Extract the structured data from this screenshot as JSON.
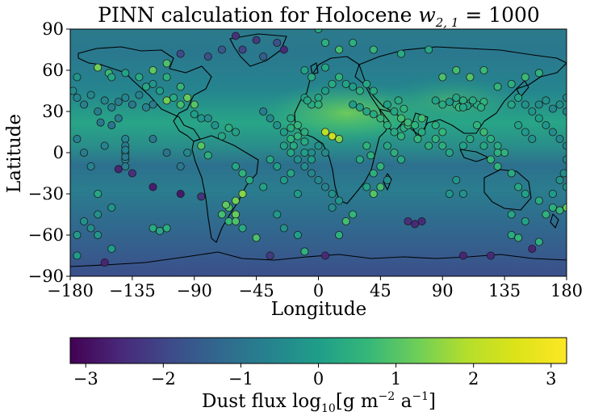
{
  "chart_data": {
    "type": "scatter",
    "title": "PINN calculation for Holocene",
    "title_math": "w",
    "title_math_sub": "2, 1",
    "title_math_rhs": " = 1000",
    "xlabel": "Longitude",
    "ylabel": "Latitude",
    "xlim": [
      -180,
      180
    ],
    "ylim": [
      -90,
      90
    ],
    "xticks": [
      -180,
      -135,
      -90,
      -45,
      0,
      45,
      90,
      135,
      180
    ],
    "yticks": [
      -90,
      -60,
      -30,
      0,
      30,
      60,
      90
    ],
    "xtick_labels": [
      "−180",
      "−135",
      "−90",
      "−45",
      "0",
      "45",
      "90",
      "135",
      "180"
    ],
    "ytick_labels": [
      "−90",
      "−60",
      "−30",
      "0",
      "30",
      "60",
      "90"
    ],
    "colormap": "viridis",
    "colorbar": {
      "label_main": "Dust flux log",
      "label_sub": "10",
      "label_unit_open": "[g m",
      "label_sup1": "−2",
      "label_unit_mid": " a",
      "label_sup2": "−1",
      "label_unit_close": "]",
      "range": [
        -3.2,
        3.2
      ],
      "ticks": [
        -3,
        -2,
        -1,
        0,
        1,
        2,
        3
      ],
      "tick_labels": [
        "−3",
        "−2",
        "−1",
        "0",
        "1",
        "2",
        "3"
      ]
    },
    "points": [
      [
        -150,
        33,
        -0.7
      ],
      [
        -160,
        30,
        -0.8
      ],
      [
        -175,
        40,
        -0.6
      ],
      [
        -170,
        35,
        -0.7
      ],
      [
        -165,
        42,
        -0.5
      ],
      [
        -155,
        38,
        -0.6
      ],
      [
        -145,
        37,
        -0.8
      ],
      [
        -140,
        40,
        -0.6
      ],
      [
        -135,
        35,
        -0.9
      ],
      [
        -130,
        42,
        -0.7
      ],
      [
        -125,
        33,
        -0.6
      ],
      [
        -120,
        35,
        -0.8
      ],
      [
        -158,
        22,
        -0.9
      ],
      [
        -150,
        20,
        -1.0
      ],
      [
        -145,
        25,
        -0.8
      ],
      [
        -125,
        48,
        0.2
      ],
      [
        -120,
        50,
        -0.2
      ],
      [
        -115,
        45,
        0.0
      ],
      [
        -110,
        55,
        0.4
      ],
      [
        -100,
        48,
        0.6
      ],
      [
        -105,
        40,
        0.3
      ],
      [
        -152,
        58,
        0.7
      ],
      [
        -160,
        62,
        1.3
      ],
      [
        -140,
        10,
        -0.6
      ],
      [
        -140,
        5,
        -0.8
      ],
      [
        -140,
        0,
        -0.9
      ],
      [
        -140,
        -5,
        -0.7
      ],
      [
        -140,
        -10,
        -0.8
      ],
      [
        -140,
        -3,
        -0.9
      ],
      [
        -140,
        2,
        -0.7
      ],
      [
        -155,
        5,
        -0.6
      ],
      [
        -110,
        38,
        1.3
      ],
      [
        -90,
        28,
        0.0
      ],
      [
        -85,
        25,
        -0.2
      ],
      [
        -80,
        25,
        -0.4
      ],
      [
        -75,
        20,
        -0.3
      ],
      [
        -85,
        5,
        1.0
      ],
      [
        -80,
        -2,
        0.4
      ],
      [
        -95,
        0,
        -0.5
      ],
      [
        -145,
        -12,
        -2.6
      ],
      [
        -135,
        -15,
        -2.4
      ],
      [
        -120,
        -25,
        -2.7
      ],
      [
        -100,
        -30,
        -2.8
      ],
      [
        -85,
        -32,
        -2.3
      ],
      [
        -160,
        -30,
        0.2
      ],
      [
        -60,
        -35,
        1.3
      ],
      [
        -55,
        -30,
        1.5
      ],
      [
        -65,
        -40,
        0.9
      ],
      [
        -70,
        -45,
        0.8
      ],
      [
        -60,
        -45,
        1.2
      ],
      [
        -65,
        -50,
        0.6
      ],
      [
        -55,
        -55,
        0.3
      ],
      [
        -60,
        -50,
        0.9
      ],
      [
        -67,
        -38,
        1.1
      ],
      [
        -45,
        -62,
        0.9
      ],
      [
        -25,
        -55,
        -0.3
      ],
      [
        -30,
        -45,
        -0.1
      ],
      [
        -15,
        -60,
        0.0
      ],
      [
        -10,
        -72,
        0.5
      ],
      [
        -120,
        -55,
        0.3
      ],
      [
        -115,
        -57,
        0.2
      ],
      [
        -110,
        -55,
        0.4
      ],
      [
        -165,
        -55,
        -0.4
      ],
      [
        -160,
        -60,
        -0.2
      ],
      [
        -170,
        -50,
        -0.3
      ],
      [
        -175,
        -60,
        -0.1
      ],
      [
        -155,
        -80,
        -2.6
      ],
      [
        -35,
        -75,
        -2.2
      ],
      [
        5,
        -75,
        -2.5
      ],
      [
        105,
        -75,
        -2.6
      ],
      [
        125,
        -75,
        -2.5
      ],
      [
        155,
        -70,
        -2.6
      ],
      [
        -60,
        85,
        -2.4
      ],
      [
        -55,
        75,
        -2.0
      ],
      [
        -40,
        70,
        -1.5
      ],
      [
        -25,
        75,
        -2.5
      ],
      [
        -45,
        82,
        -2.2
      ],
      [
        -30,
        80,
        -1.8
      ],
      [
        0,
        90,
        0.3
      ],
      [
        5,
        80,
        0.4
      ],
      [
        15,
        75,
        0.8
      ],
      [
        -40,
        30,
        -0.8
      ],
      [
        -35,
        25,
        -0.5
      ],
      [
        -30,
        20,
        -0.3
      ],
      [
        -25,
        15,
        0.0
      ],
      [
        -20,
        18,
        0.4
      ],
      [
        -20,
        25,
        0.3
      ],
      [
        -15,
        20,
        0.6
      ],
      [
        -15,
        12,
        0.5
      ],
      [
        -10,
        8,
        0.3
      ],
      [
        -10,
        15,
        0.4
      ],
      [
        -5,
        0,
        -0.4
      ],
      [
        0,
        5,
        -0.3
      ],
      [
        5,
        0,
        -0.5
      ],
      [
        -15,
        -5,
        -0.3
      ],
      [
        -10,
        -10,
        -0.4
      ],
      [
        -5,
        -15,
        -0.6
      ],
      [
        0,
        -20,
        -0.5
      ],
      [
        5,
        -25,
        -0.7
      ],
      [
        10,
        -30,
        -0.3
      ],
      [
        15,
        -35,
        -0.2
      ],
      [
        10,
        -40,
        -0.4
      ],
      [
        -20,
        10,
        0.5
      ],
      [
        -20,
        0,
        0.2
      ],
      [
        -18,
        5,
        0.3
      ],
      [
        -25,
        5,
        0.1
      ],
      [
        -10,
        0,
        0.0
      ],
      [
        -5,
        -5,
        -0.1
      ],
      [
        -20,
        -15,
        0.2
      ],
      [
        -15,
        -30,
        -0.1
      ],
      [
        0,
        40,
        0.2
      ],
      [
        5,
        45,
        0.0
      ],
      [
        10,
        50,
        0.3
      ],
      [
        15,
        55,
        0.5
      ],
      [
        20,
        50,
        0.1
      ],
      [
        25,
        48,
        0.0
      ],
      [
        30,
        45,
        0.4
      ],
      [
        -10,
        40,
        0.1
      ],
      [
        -5,
        35,
        0.3
      ],
      [
        0,
        35,
        0.5
      ],
      [
        -8,
        38,
        0.2
      ],
      [
        25,
        35,
        0.0
      ],
      [
        30,
        33,
        0.1
      ],
      [
        35,
        30,
        0.2
      ],
      [
        40,
        28,
        0.3
      ],
      [
        45,
        25,
        0.6
      ],
      [
        50,
        20,
        0.4
      ],
      [
        55,
        15,
        0.3
      ],
      [
        60,
        12,
        0.5
      ],
      [
        62,
        18,
        0.4
      ],
      [
        65,
        20,
        0.6
      ],
      [
        5,
        15,
        2.0
      ],
      [
        10,
        12,
        2.3
      ],
      [
        15,
        10,
        1.5
      ],
      [
        50,
        5,
        0.2
      ],
      [
        55,
        0,
        0.4
      ],
      [
        60,
        -5,
        0.3
      ],
      [
        45,
        -10,
        0.5
      ],
      [
        40,
        -15,
        0.4
      ],
      [
        50,
        -20,
        -0.4
      ],
      [
        35,
        -25,
        0.1
      ],
      [
        60,
        25,
        0.8
      ],
      [
        65,
        22,
        0.7
      ],
      [
        70,
        20,
        0.5
      ],
      [
        75,
        15,
        0.3
      ],
      [
        72,
        10,
        0.6
      ],
      [
        80,
        5,
        0.4
      ],
      [
        85,
        10,
        0.5
      ],
      [
        90,
        15,
        0.6
      ],
      [
        85,
        20,
        0.4
      ],
      [
        75,
        25,
        0.8
      ],
      [
        55,
        30,
        0.2
      ],
      [
        50,
        35,
        0.1
      ],
      [
        58,
        38,
        0.3
      ],
      [
        62,
        32,
        0.5
      ],
      [
        100,
        35,
        0.3
      ],
      [
        105,
        38,
        0.4
      ],
      [
        110,
        36,
        0.2
      ],
      [
        115,
        35,
        0.3
      ],
      [
        120,
        37,
        0.5
      ],
      [
        108,
        34,
        0.1
      ],
      [
        112,
        38,
        0.3
      ],
      [
        102,
        33,
        0.6
      ],
      [
        118,
        33,
        0.4
      ],
      [
        105,
        33,
        0.2
      ],
      [
        85,
        38,
        0.1
      ],
      [
        90,
        35,
        0.3
      ],
      [
        95,
        37,
        -0.1
      ],
      [
        100,
        40,
        0.2
      ],
      [
        115,
        20,
        0.5
      ],
      [
        120,
        15,
        0.7
      ],
      [
        125,
        10,
        0.4
      ],
      [
        130,
        5,
        0.3
      ],
      [
        135,
        0,
        0.5
      ],
      [
        125,
        -5,
        0.6
      ],
      [
        130,
        0,
        0.4
      ],
      [
        120,
        5,
        0.2
      ],
      [
        110,
        10,
        0.3
      ],
      [
        105,
        5,
        0.1
      ],
      [
        95,
        0,
        0.2
      ],
      [
        90,
        5,
        0.4
      ],
      [
        130,
        -10,
        0.5
      ],
      [
        140,
        -15,
        0.3
      ],
      [
        145,
        -25,
        0.2
      ],
      [
        150,
        -30,
        0.1
      ],
      [
        160,
        -35,
        0.3
      ],
      [
        170,
        -40,
        0.4
      ],
      [
        165,
        -45,
        0.5
      ],
      [
        175,
        -42,
        0.6
      ],
      [
        100,
        -20,
        -0.2
      ],
      [
        105,
        -30,
        -0.3
      ],
      [
        95,
        -30,
        -0.2
      ],
      [
        140,
        35,
        0.2
      ],
      [
        145,
        40,
        0.1
      ],
      [
        150,
        35,
        -0.3
      ],
      [
        155,
        30,
        -0.2
      ],
      [
        160,
        35,
        -0.4
      ],
      [
        165,
        38,
        -0.3
      ],
      [
        170,
        32,
        -0.5
      ],
      [
        175,
        35,
        -0.4
      ],
      [
        180,
        30,
        -0.6
      ],
      [
        180,
        40,
        -0.5
      ],
      [
        160,
        25,
        0.0
      ],
      [
        165,
        20,
        -0.2
      ],
      [
        170,
        15,
        -0.4
      ],
      [
        175,
        10,
        -0.5
      ],
      [
        180,
        5,
        -0.6
      ],
      [
        180,
        -5,
        -0.5
      ],
      [
        178,
        -15,
        -0.4
      ],
      [
        175,
        -20,
        -0.3
      ],
      [
        180,
        -25,
        -0.2
      ],
      [
        170,
        -30,
        -0.1
      ],
      [
        145,
        20,
        0.1
      ],
      [
        150,
        15,
        -0.1
      ],
      [
        155,
        10,
        -0.3
      ],
      [
        180,
        -40,
        1.2
      ],
      [
        140,
        -60,
        0.3
      ],
      [
        145,
        -62,
        0.5
      ],
      [
        160,
        -65,
        0.4
      ],
      [
        65,
        -50,
        -2.4
      ],
      [
        70,
        -52,
        -2.5
      ],
      [
        75,
        -50,
        -2.5
      ],
      [
        25,
        -45,
        0.6
      ],
      [
        20,
        -50,
        0.8
      ],
      [
        15,
        -60,
        0.4
      ],
      [
        40,
        -30,
        1.0
      ],
      [
        45,
        -25,
        0.8
      ],
      [
        -60,
        -10,
        0.2
      ],
      [
        -50,
        -20,
        0.3
      ],
      [
        -40,
        -25,
        0.1
      ],
      [
        -55,
        -15,
        0.5
      ],
      [
        -70,
        12,
        0.2
      ],
      [
        -65,
        18,
        0.4
      ],
      [
        -60,
        15,
        0.1
      ],
      [
        -150,
        -70,
        0.0
      ],
      [
        -175,
        -75,
        -0.1
      ],
      [
        25,
        80,
        0.4
      ],
      [
        40,
        75,
        0.6
      ],
      [
        60,
        72,
        0.3
      ],
      [
        80,
        75,
        0.2
      ],
      [
        -80,
        70,
        -1.8
      ],
      [
        -70,
        75,
        -1.6
      ],
      [
        -100,
        72,
        -1.9
      ],
      [
        150,
        55,
        0.7
      ],
      [
        160,
        58,
        0.5
      ],
      [
        140,
        50,
        0.4
      ],
      [
        130,
        48,
        0.6
      ],
      [
        -130,
        55,
        0.3
      ],
      [
        -140,
        58,
        0.1
      ],
      [
        -150,
        55,
        0.2
      ],
      [
        -175,
        55,
        -0.2
      ],
      [
        -178,
        45,
        -0.4
      ],
      [
        -90,
        35,
        1.0
      ],
      [
        -95,
        40,
        1.2
      ],
      [
        -100,
        35,
        0.8
      ],
      [
        -120,
        60,
        1.1
      ],
      [
        -110,
        65,
        0.9
      ],
      [
        100,
        60,
        0.8
      ],
      [
        110,
        55,
        1.0
      ],
      [
        90,
        55,
        0.9
      ],
      [
        120,
        60,
        0.7
      ],
      [
        30,
        -5,
        0.3
      ],
      [
        35,
        5,
        0.5
      ],
      [
        38,
        -2,
        0.4
      ],
      [
        -175,
        10,
        -0.7
      ],
      [
        -170,
        0,
        -0.8
      ],
      [
        -165,
        -10,
        -0.6
      ],
      [
        -120,
        10,
        -0.9
      ],
      [
        -110,
        0,
        -1.0
      ],
      [
        -100,
        -10,
        -0.9
      ],
      [
        -30,
        -10,
        0.0
      ],
      [
        -25,
        -20,
        -0.1
      ],
      [
        -35,
        -5,
        0.2
      ],
      [
        -5,
        55,
        0.3
      ],
      [
        -10,
        60,
        0.1
      ],
      [
        5,
        62,
        0.2
      ],
      [
        35,
        50,
        0.2
      ],
      [
        40,
        45,
        0.3
      ],
      [
        140,
        -45,
        0.2
      ],
      [
        150,
        -50,
        0.1
      ],
      [
        -160,
        -45,
        -0.3
      ],
      [
        -150,
        -40,
        -0.2
      ]
    ]
  }
}
